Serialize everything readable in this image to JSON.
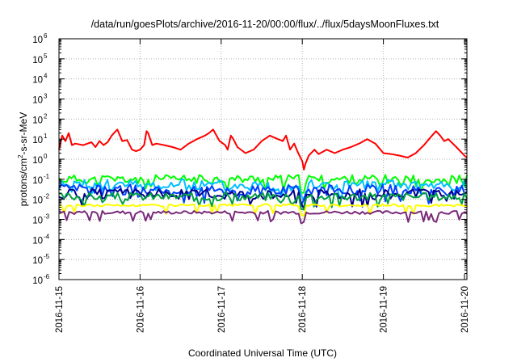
{
  "chart_data": {
    "type": "line",
    "title": "/data/run/goesPlots/archive/2016-11-20/00:00/flux/../flux/5daysMoonFluxes.txt",
    "xlabel": "Coordinated Universal Time (UTC)",
    "ylabel": "protons/cm²-s-sr-MeV",
    "ylabel_parts": {
      "before": "protons/cm",
      "sup": "2",
      "after": "-s-sr-MeV"
    },
    "y_scale": "log",
    "ylim_exponents": [
      -6,
      6
    ],
    "yticks": [
      {
        "base": "10",
        "exp": "-6"
      },
      {
        "base": "10",
        "exp": "-5"
      },
      {
        "base": "10",
        "exp": "-4"
      },
      {
        "base": "10",
        "exp": "-3"
      },
      {
        "base": "10",
        "exp": "-2"
      },
      {
        "base": "10",
        "exp": "-1"
      },
      {
        "base": "10",
        "exp": "0"
      },
      {
        "base": "10",
        "exp": "1"
      },
      {
        "base": "10",
        "exp": "2"
      },
      {
        "base": "10",
        "exp": "3"
      },
      {
        "base": "10",
        "exp": "4"
      },
      {
        "base": "10",
        "exp": "5"
      },
      {
        "base": "10",
        "exp": "6"
      }
    ],
    "x_range_days": [
      0,
      5.03
    ],
    "xticks": [
      "2016-11-15",
      "2016-11-16",
      "2016-11-17",
      "2016-11-18",
      "2016-11-19",
      "2016-11-20"
    ],
    "grid": true,
    "legend": "none",
    "series": [
      {
        "color": "#ff0000",
        "points": [
          [
            0,
            3
          ],
          [
            0.04,
            15
          ],
          [
            0.08,
            8
          ],
          [
            0.12,
            20
          ],
          [
            0.16,
            5
          ],
          [
            0.2,
            6
          ],
          [
            0.3,
            5
          ],
          [
            0.4,
            7
          ],
          [
            0.45,
            4
          ],
          [
            0.5,
            8
          ],
          [
            0.55,
            5
          ],
          [
            0.6,
            7
          ],
          [
            0.65,
            15
          ],
          [
            0.7,
            25
          ],
          [
            0.72,
            30
          ],
          [
            0.78,
            8
          ],
          [
            0.84,
            9
          ],
          [
            0.9,
            3
          ],
          [
            0.95,
            2.5
          ],
          [
            1.0,
            3
          ],
          [
            1.05,
            5
          ],
          [
            1.08,
            25
          ],
          [
            1.1,
            20
          ],
          [
            1.15,
            5
          ],
          [
            1.2,
            6
          ],
          [
            1.3,
            5
          ],
          [
            1.4,
            4
          ],
          [
            1.5,
            3
          ],
          [
            1.6,
            6
          ],
          [
            1.7,
            10
          ],
          [
            1.8,
            15
          ],
          [
            1.85,
            20
          ],
          [
            1.9,
            30
          ],
          [
            1.98,
            8
          ],
          [
            2.05,
            5
          ],
          [
            2.08,
            3
          ],
          [
            2.12,
            15
          ],
          [
            2.15,
            10
          ],
          [
            2.2,
            4
          ],
          [
            2.3,
            2
          ],
          [
            2.4,
            3
          ],
          [
            2.5,
            8
          ],
          [
            2.6,
            15
          ],
          [
            2.7,
            10
          ],
          [
            2.76,
            8
          ],
          [
            2.8,
            15
          ],
          [
            2.85,
            3
          ],
          [
            2.9,
            6
          ],
          [
            2.95,
            2
          ],
          [
            3.0,
            0.8
          ],
          [
            3.02,
            0.3
          ],
          [
            3.04,
            0.6
          ],
          [
            3.08,
            1.5
          ],
          [
            3.15,
            3
          ],
          [
            3.2,
            1.8
          ],
          [
            3.3,
            3
          ],
          [
            3.4,
            2
          ],
          [
            3.5,
            3
          ],
          [
            3.6,
            4
          ],
          [
            3.7,
            6
          ],
          [
            3.8,
            10
          ],
          [
            3.9,
            6
          ],
          [
            4.0,
            2
          ],
          [
            4.1,
            1.8
          ],
          [
            4.2,
            1.5
          ],
          [
            4.3,
            1.2
          ],
          [
            4.4,
            2
          ],
          [
            4.5,
            5
          ],
          [
            4.6,
            15
          ],
          [
            4.65,
            25
          ],
          [
            4.7,
            15
          ],
          [
            4.75,
            8
          ],
          [
            4.8,
            10
          ],
          [
            4.9,
            4
          ],
          [
            5.0,
            1.5
          ],
          [
            5.03,
            1.2
          ]
        ]
      },
      {
        "color": "#00ff00",
        "level": 0.1,
        "amp": 0.22,
        "seed": 11
      },
      {
        "color": "#00c0ff",
        "level": 0.05,
        "amp": 0.3,
        "seed": 23
      },
      {
        "color": "#0040ff",
        "level": 0.028,
        "amp": 0.3,
        "seed": 37
      },
      {
        "color": "#00008b",
        "level": 0.018,
        "amp": 0.25,
        "seed": 51
      },
      {
        "color": "#00a040",
        "level": 0.014,
        "amp": 0.2,
        "seed": 67
      },
      {
        "color": "#ffff00",
        "level": 0.005,
        "amp": 0.06,
        "seed": 79
      },
      {
        "color": "#7a2a7a",
        "level": 0.0022,
        "amp": 0.08,
        "seed": 93
      }
    ]
  }
}
